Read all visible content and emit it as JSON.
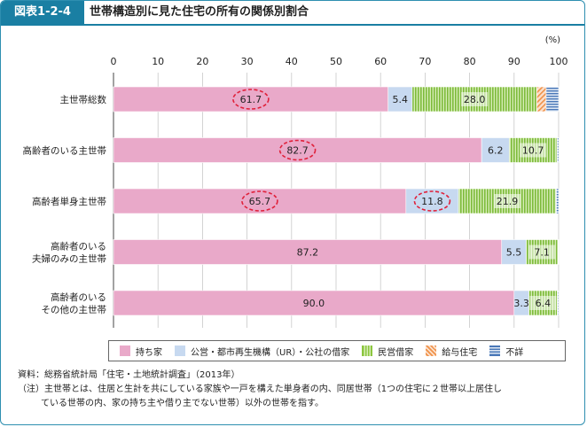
{
  "header": {
    "figure_number": "図表1-2-4",
    "title": "世帯構造別に見た住宅の所有の関係別割合"
  },
  "chart_data": {
    "type": "bar",
    "orientation": "horizontal",
    "stacked": true,
    "unit": "(%)",
    "xlim": [
      0,
      100
    ],
    "x_ticks": [
      "0",
      "10",
      "20",
      "30",
      "40",
      "50",
      "60",
      "70",
      "80",
      "90",
      "100"
    ],
    "categories": [
      "主世帯総数",
      "高齢者のいる主世帯",
      "高齢者単身主世帯",
      "高齢者のいる\n夫婦のみの主世帯",
      "高齢者のいる\nその他の主世帯"
    ],
    "series": [
      {
        "name": "持ち家",
        "color": "#e9a9c9",
        "pattern": "solid",
        "values": [
          61.7,
          82.7,
          65.7,
          87.2,
          90.0
        ],
        "labels": [
          "61.7",
          "82.7",
          "65.7",
          "87.2",
          "90.0"
        ]
      },
      {
        "name": "公営・都市再生機構（UR）・公社の借家",
        "color": "#c7d9f0",
        "pattern": "solid",
        "values": [
          5.4,
          6.2,
          11.8,
          5.5,
          3.3
        ],
        "labels": [
          "5.4",
          "6.2",
          "11.8",
          "5.5",
          "3.3"
        ]
      },
      {
        "name": "民営借家",
        "color": "#8cc63f",
        "pattern": "vertical-lines",
        "values": [
          28.0,
          10.7,
          21.9,
          7.1,
          6.4
        ],
        "labels": [
          "28.0",
          "10.7",
          "21.9",
          "7.1",
          "6.4"
        ]
      },
      {
        "name": "給与住宅",
        "color": "#f0924a",
        "pattern": "diagonal-lines",
        "values": [
          2.1,
          0.1,
          0.1,
          0.1,
          0.1
        ],
        "labels": [
          "",
          "",
          "",
          "",
          ""
        ]
      },
      {
        "name": "不詳",
        "color": "#4a78b8",
        "pattern": "horizontal-lines",
        "values": [
          2.8,
          0.3,
          0.5,
          0.1,
          0.2
        ],
        "labels": [
          "",
          "",
          "",
          "",
          ""
        ]
      }
    ],
    "highlighted": [
      {
        "category_index": 0,
        "series_index": 0
      },
      {
        "category_index": 1,
        "series_index": 0
      },
      {
        "category_index": 2,
        "series_index": 0
      },
      {
        "category_index": 2,
        "series_index": 1
      }
    ],
    "highlight_color": "#e0203a",
    "grid": true,
    "legend_position": "bottom"
  },
  "notes": {
    "source_label": "資料：",
    "source_text": "総務省統計局「住宅・土地統計調査」（2013年）",
    "note_label": "（注）",
    "note_line1": "主世帯とは、住居と生計を共にしている家族や一戸を構えた単身者の内、同居世帯（1つの住宅に２世帯以上居住し",
    "note_line2": "ている世帯の内、家の持ち主や借り主でない世帯）以外の世帯を指す。"
  }
}
